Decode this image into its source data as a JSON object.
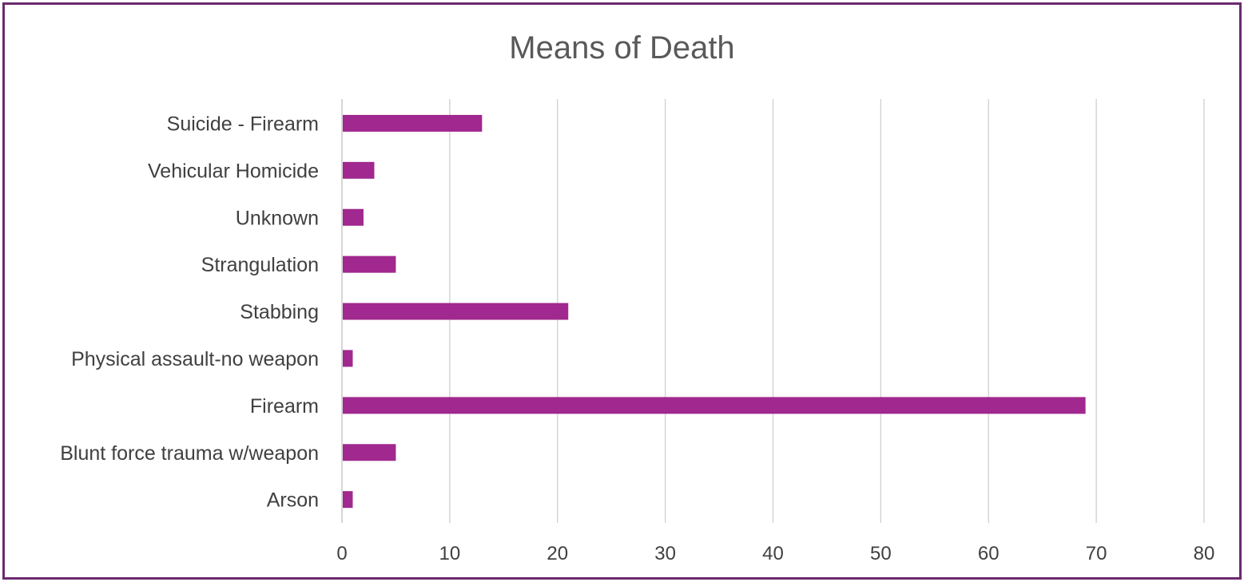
{
  "chart_data": {
    "type": "bar",
    "orientation": "horizontal",
    "title": "Means of Death",
    "xlabel": "",
    "ylabel": "",
    "categories": [
      "Suicide - Firearm",
      "Vehicular Homicide",
      "Unknown",
      "Strangulation",
      "Stabbing",
      "Physical assault-no weapon",
      "Firearm",
      "Blunt force trauma w/weapon",
      "Arson"
    ],
    "values": [
      13,
      3,
      2,
      5,
      21,
      1,
      69,
      5,
      1
    ],
    "xlim": [
      0,
      80
    ],
    "xticks": [
      0,
      10,
      20,
      30,
      40,
      50,
      60,
      70,
      80
    ],
    "grid": true,
    "legend": "none",
    "bar_color": "#a0288e",
    "frame_color": "#6b2a6e"
  }
}
